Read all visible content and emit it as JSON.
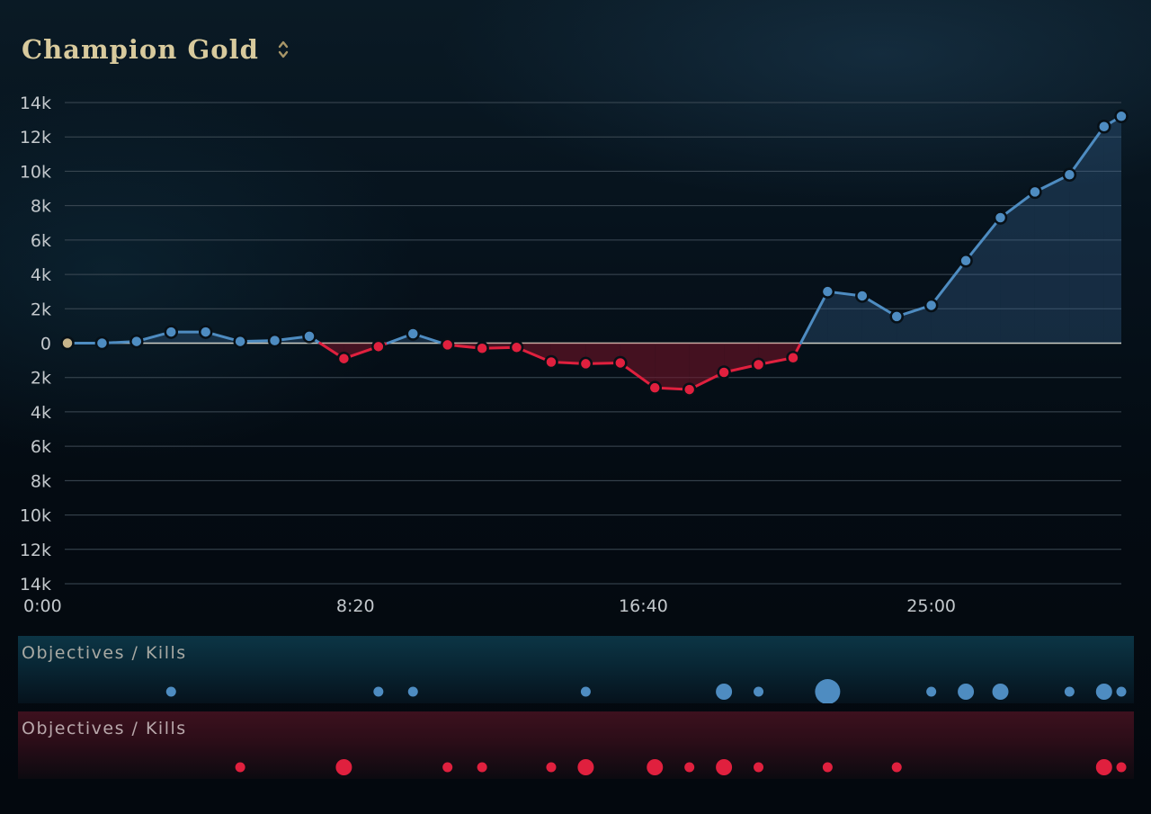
{
  "header": {
    "title": "Champion Gold"
  },
  "colors": {
    "blue_team": "#4e8cc1",
    "red_team": "#e0203e",
    "start_point": "#c8b48a",
    "title": "#d8ca9d"
  },
  "icons": {
    "sort_toggle": "chevron-up-down-icon"
  },
  "chart_data": {
    "type": "line",
    "title": "Champion Gold",
    "xlabel": "",
    "ylabel": "",
    "ylim": [
      -14000,
      14000
    ],
    "xlim": [
      0,
      1830
    ],
    "grid": true,
    "x_tick_labels": [
      "0:00",
      "8:20",
      "16:40",
      "25:00"
    ],
    "x_tick_values": [
      0,
      500,
      1000,
      1500
    ],
    "y_tick_labels": [
      "14k",
      "12k",
      "10k",
      "8k",
      "6k",
      "4k",
      "2k",
      "0",
      "2k",
      "4k",
      "6k",
      "8k",
      "10k",
      "12k",
      "14k"
    ],
    "y_tick_values": [
      14000,
      12000,
      10000,
      8000,
      6000,
      4000,
      2000,
      0,
      -2000,
      -4000,
      -6000,
      -8000,
      -10000,
      -12000,
      -14000
    ],
    "series": [
      {
        "x": [
          0,
          60,
          120,
          180,
          240,
          300,
          360,
          420,
          480,
          540,
          600,
          660,
          720,
          780,
          840,
          900,
          960,
          1020,
          1080,
          1140,
          1200,
          1260,
          1320,
          1380,
          1440,
          1500,
          1560,
          1620,
          1680,
          1740,
          1800,
          1830
        ],
        "values": [
          0,
          0,
          100,
          650,
          650,
          100,
          150,
          400,
          -900,
          -200,
          550,
          -100,
          -300,
          -250,
          -1100,
          -1200,
          -1150,
          -2600,
          -2700,
          -1700,
          -1250,
          -850,
          3000,
          2750,
          1550,
          2200,
          4800,
          7300,
          8800,
          9800,
          12600,
          13200
        ]
      }
    ],
    "objectives": {
      "label": "Objectives / Kills",
      "blue": [
        {
          "x": 180,
          "size": "small"
        },
        {
          "x": 540,
          "size": "small"
        },
        {
          "x": 600,
          "size": "small"
        },
        {
          "x": 900,
          "size": "small"
        },
        {
          "x": 1140,
          "size": "medium"
        },
        {
          "x": 1200,
          "size": "small"
        },
        {
          "x": 1320,
          "size": "large"
        },
        {
          "x": 1500,
          "size": "small"
        },
        {
          "x": 1560,
          "size": "medium"
        },
        {
          "x": 1620,
          "size": "medium"
        },
        {
          "x": 1740,
          "size": "small"
        },
        {
          "x": 1800,
          "size": "medium"
        },
        {
          "x": 1835,
          "size": "small"
        }
      ],
      "red": [
        {
          "x": 300,
          "size": "small"
        },
        {
          "x": 480,
          "size": "medium"
        },
        {
          "x": 660,
          "size": "small"
        },
        {
          "x": 720,
          "size": "small"
        },
        {
          "x": 840,
          "size": "small"
        },
        {
          "x": 900,
          "size": "medium"
        },
        {
          "x": 1020,
          "size": "medium"
        },
        {
          "x": 1080,
          "size": "small"
        },
        {
          "x": 1140,
          "size": "medium"
        },
        {
          "x": 1200,
          "size": "small"
        },
        {
          "x": 1320,
          "size": "small"
        },
        {
          "x": 1440,
          "size": "small"
        },
        {
          "x": 1800,
          "size": "medium"
        },
        {
          "x": 1835,
          "size": "small"
        }
      ]
    }
  }
}
